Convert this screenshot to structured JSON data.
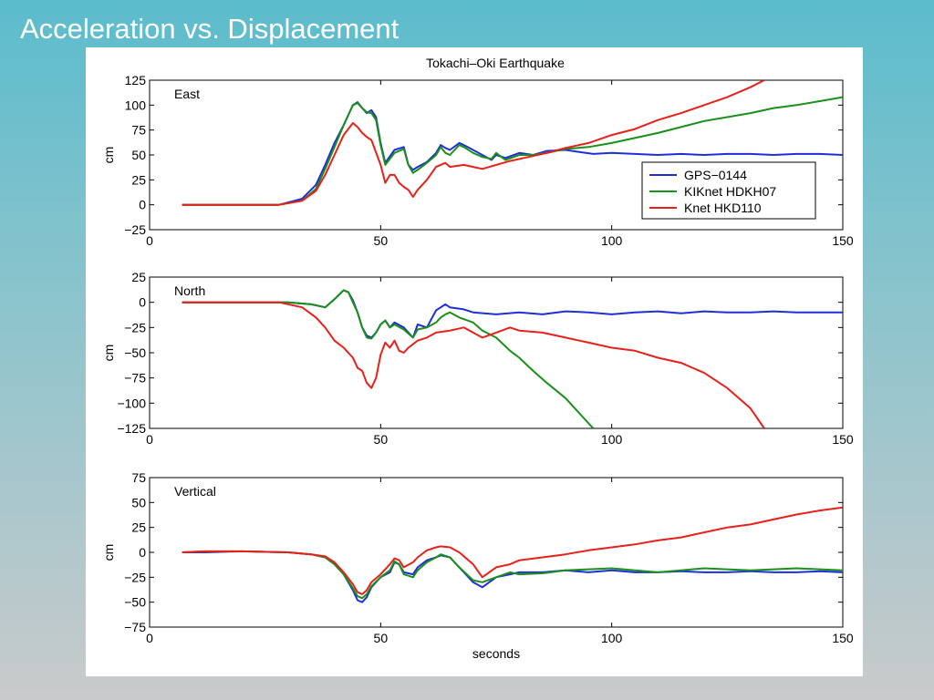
{
  "slide": {
    "title": "Acceleration vs. Displacement"
  },
  "figure": {
    "title": "Tokachi–Oki Earthquake"
  },
  "colors": {
    "gps": "#1f2fd8",
    "kik": "#1a8f1a",
    "knet": "#e8201a"
  },
  "chart_data": [
    {
      "type": "line",
      "panel_label": "East",
      "xlabel": "",
      "ylabel": "cm",
      "xlim": [
        0,
        150
      ],
      "ylim": [
        -25,
        125
      ],
      "xticks": [
        "0",
        "50",
        "100",
        "150"
      ],
      "yticks": [
        "−25",
        "0",
        "25",
        "50",
        "75",
        "100",
        "125"
      ],
      "legend": {
        "placement": "lower-right",
        "entries": [
          "GPS−0144",
          "KIKnet HDKH07",
          "Knet HKD110"
        ]
      },
      "series": [
        {
          "name": "GPS−0144",
          "color": "#1f2fd8",
          "x": [
            7,
            12,
            20,
            28,
            33,
            36,
            38,
            40,
            42,
            44,
            45,
            46,
            47,
            48,
            49,
            50,
            51,
            53,
            55,
            56,
            57,
            58,
            60,
            62,
            63,
            64,
            65,
            67,
            68,
            70,
            72,
            74,
            75,
            77,
            80,
            83,
            86,
            90,
            93,
            96,
            100,
            105,
            110,
            115,
            120,
            125,
            130,
            135,
            140,
            145,
            150
          ],
          "y": [
            0,
            0,
            0,
            0,
            6,
            20,
            40,
            62,
            80,
            100,
            103,
            97,
            92,
            95,
            88,
            62,
            42,
            55,
            58,
            40,
            35,
            38,
            43,
            52,
            60,
            57,
            55,
            62,
            60,
            55,
            50,
            45,
            50,
            47,
            52,
            50,
            54,
            55,
            53,
            51,
            52,
            51,
            50,
            51,
            50,
            51,
            51,
            50,
            51,
            51,
            50
          ]
        },
        {
          "name": "KIKnet HDKH07",
          "color": "#1a8f1a",
          "x": [
            7,
            12,
            20,
            28,
            33,
            36,
            38,
            40,
            42,
            44,
            45,
            46,
            47,
            48,
            49,
            50,
            51,
            53,
            55,
            56,
            57,
            58,
            60,
            62,
            63,
            64,
            65,
            67,
            68,
            70,
            72,
            74,
            75,
            77,
            80,
            83,
            86,
            90,
            95,
            100,
            105,
            110,
            115,
            120,
            125,
            130,
            135,
            140,
            145,
            150
          ],
          "y": [
            0,
            0,
            0,
            0,
            4,
            16,
            36,
            58,
            80,
            100,
            102,
            97,
            93,
            92,
            85,
            60,
            40,
            52,
            56,
            40,
            32,
            35,
            42,
            50,
            58,
            52,
            50,
            60,
            58,
            52,
            48,
            46,
            52,
            45,
            50,
            50,
            52,
            56,
            58,
            62,
            67,
            72,
            78,
            84,
            88,
            92,
            97,
            100,
            104,
            108
          ]
        },
        {
          "name": "Knet HKD110",
          "color": "#e8201a",
          "x": [
            7,
            12,
            20,
            28,
            33,
            36,
            38,
            40,
            42,
            44,
            45,
            46,
            47,
            48,
            50,
            51,
            52,
            53,
            54,
            55,
            56,
            57,
            58,
            60,
            62,
            64,
            65,
            68,
            70,
            72,
            75,
            78,
            82,
            86,
            90,
            95,
            100,
            105,
            110,
            115,
            120,
            125,
            130,
            133
          ],
          "y": [
            0,
            0,
            0,
            0,
            4,
            14,
            30,
            50,
            70,
            82,
            78,
            72,
            68,
            65,
            40,
            22,
            30,
            30,
            22,
            18,
            15,
            8,
            15,
            25,
            38,
            42,
            38,
            40,
            38,
            36,
            40,
            44,
            48,
            52,
            57,
            62,
            70,
            76,
            85,
            92,
            100,
            108,
            118,
            125
          ]
        }
      ]
    },
    {
      "type": "line",
      "panel_label": "North",
      "xlabel": "",
      "ylabel": "cm",
      "xlim": [
        0,
        150
      ],
      "ylim": [
        -125,
        25
      ],
      "xticks": [
        "0",
        "50",
        "100",
        "150"
      ],
      "yticks": [
        "−125",
        "−100",
        "−75",
        "−50",
        "−25",
        "0",
        "25"
      ],
      "series": [
        {
          "name": "GPS−0144",
          "color": "#1f2fd8",
          "x": [
            7,
            12,
            20,
            30,
            35,
            38,
            40,
            42,
            43,
            44,
            45,
            46,
            47,
            48,
            49,
            50,
            51,
            52,
            53,
            55,
            57,
            58,
            60,
            62,
            63,
            64,
            65,
            68,
            70,
            75,
            80,
            85,
            90,
            95,
            100,
            105,
            110,
            115,
            120,
            125,
            130,
            135,
            140,
            145,
            150
          ],
          "y": [
            0,
            0,
            0,
            0,
            -2,
            -5,
            3,
            12,
            10,
            2,
            -10,
            -25,
            -33,
            -35,
            -30,
            -22,
            -18,
            -25,
            -20,
            -25,
            -35,
            -22,
            -25,
            -8,
            -5,
            -2,
            -5,
            -7,
            -10,
            -12,
            -10,
            -12,
            -9,
            -10,
            -12,
            -10,
            -9,
            -11,
            -9,
            -10,
            -10,
            -9,
            -10,
            -10,
            -10
          ]
        },
        {
          "name": "KIKnet HDKH07",
          "color": "#1a8f1a",
          "x": [
            7,
            12,
            20,
            30,
            35,
            38,
            40,
            42,
            43,
            44,
            45,
            46,
            47,
            48,
            49,
            50,
            51,
            52,
            53,
            55,
            57,
            58,
            60,
            62,
            63,
            64,
            65,
            67,
            70,
            72,
            75,
            78,
            80,
            83,
            86,
            90,
            93,
            96
          ],
          "y": [
            0,
            0,
            0,
            0,
            -2,
            -5,
            3,
            12,
            10,
            0,
            -10,
            -25,
            -35,
            -36,
            -30,
            -22,
            -18,
            -25,
            -22,
            -27,
            -35,
            -27,
            -25,
            -20,
            -15,
            -12,
            -10,
            -15,
            -20,
            -28,
            -35,
            -48,
            -55,
            -68,
            -80,
            -95,
            -110,
            -125
          ]
        },
        {
          "name": "Knet HKD110",
          "color": "#e8201a",
          "x": [
            7,
            12,
            20,
            28,
            33,
            36,
            38,
            40,
            42,
            44,
            45,
            46,
            47,
            48,
            49,
            50,
            51,
            52,
            53,
            54,
            55,
            56,
            58,
            60,
            62,
            65,
            68,
            70,
            72,
            75,
            78,
            80,
            85,
            90,
            95,
            100,
            105,
            110,
            115,
            120,
            125,
            130,
            133
          ],
          "y": [
            0,
            0,
            0,
            0,
            -5,
            -15,
            -25,
            -38,
            -45,
            -55,
            -65,
            -68,
            -80,
            -85,
            -75,
            -52,
            -40,
            -45,
            -38,
            -48,
            -50,
            -45,
            -38,
            -35,
            -30,
            -28,
            -25,
            -30,
            -35,
            -30,
            -25,
            -28,
            -30,
            -35,
            -40,
            -45,
            -48,
            -55,
            -60,
            -70,
            -85,
            -105,
            -125
          ]
        }
      ]
    },
    {
      "type": "line",
      "panel_label": "Vertical",
      "xlabel": "seconds",
      "ylabel": "cm",
      "xlim": [
        0,
        150
      ],
      "ylim": [
        -75,
        75
      ],
      "xticks": [
        "0",
        "50",
        "100",
        "150"
      ],
      "yticks": [
        "−75",
        "−50",
        "−25",
        "0",
        "25",
        "50",
        "75"
      ],
      "series": [
        {
          "name": "GPS−0144",
          "color": "#1f2fd8",
          "x": [
            7,
            12,
            20,
            30,
            35,
            38,
            40,
            42,
            44,
            45,
            46,
            47,
            48,
            50,
            52,
            53,
            54,
            55,
            57,
            58,
            60,
            62,
            63,
            65,
            67,
            70,
            72,
            75,
            78,
            80,
            85,
            90,
            95,
            100,
            105,
            110,
            115,
            120,
            125,
            130,
            135,
            140,
            145,
            150
          ],
          "y": [
            0,
            0,
            1,
            0,
            -2,
            -5,
            -12,
            -22,
            -38,
            -48,
            -50,
            -45,
            -35,
            -25,
            -20,
            -10,
            -12,
            -20,
            -22,
            -15,
            -8,
            -5,
            -3,
            -5,
            -15,
            -30,
            -35,
            -25,
            -22,
            -20,
            -20,
            -18,
            -20,
            -18,
            -20,
            -20,
            -19,
            -20,
            -20,
            -19,
            -20,
            -20,
            -19,
            -20
          ]
        },
        {
          "name": "KIKnet HDKH07",
          "color": "#1a8f1a",
          "x": [
            7,
            12,
            20,
            30,
            35,
            38,
            40,
            42,
            44,
            45,
            46,
            47,
            48,
            50,
            52,
            53,
            54,
            55,
            57,
            58,
            60,
            62,
            63,
            65,
            67,
            70,
            72,
            75,
            78,
            80,
            85,
            90,
            95,
            100,
            105,
            110,
            115,
            120,
            125,
            130,
            135,
            140,
            145,
            150
          ],
          "y": [
            0,
            1,
            1,
            0,
            -2,
            -5,
            -12,
            -22,
            -36,
            -44,
            -46,
            -42,
            -34,
            -25,
            -18,
            -9,
            -12,
            -22,
            -25,
            -18,
            -10,
            -5,
            -2,
            -5,
            -15,
            -28,
            -30,
            -25,
            -20,
            -22,
            -21,
            -18,
            -17,
            -16,
            -18,
            -20,
            -18,
            -16,
            -17,
            -18,
            -17,
            -16,
            -17,
            -18
          ]
        },
        {
          "name": "Knet HKD110",
          "color": "#e8201a",
          "x": [
            7,
            12,
            20,
            30,
            35,
            38,
            40,
            42,
            44,
            45,
            46,
            47,
            48,
            50,
            52,
            53,
            54,
            55,
            57,
            58,
            60,
            62,
            63,
            65,
            67,
            70,
            72,
            75,
            78,
            80,
            85,
            90,
            95,
            100,
            105,
            110,
            115,
            120,
            125,
            130,
            135,
            140,
            145,
            150
          ],
          "y": [
            0,
            1,
            1,
            0,
            -2,
            -4,
            -10,
            -20,
            -32,
            -40,
            -42,
            -38,
            -30,
            -22,
            -12,
            -6,
            -8,
            -15,
            -10,
            -5,
            2,
            5,
            6,
            5,
            0,
            -12,
            -25,
            -15,
            -12,
            -8,
            -5,
            -2,
            2,
            5,
            8,
            12,
            15,
            20,
            25,
            28,
            33,
            38,
            42,
            45
          ]
        }
      ]
    }
  ]
}
